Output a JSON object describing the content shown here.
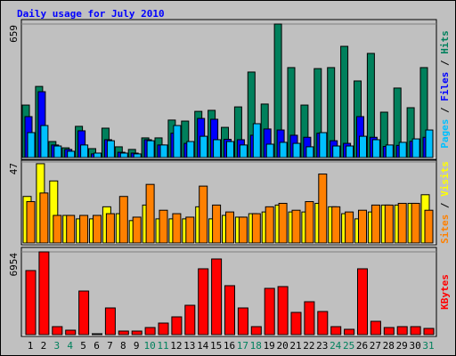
{
  "title": "Daily usage for July 2010",
  "chart_data": [
    {
      "type": "bar",
      "ylim": [
        0,
        659
      ],
      "yticks": [
        659
      ],
      "legend_separator": " / ",
      "series": [
        {
          "name": "Hits",
          "color": "#00805c",
          "values": [
            259,
            351,
            79,
            48,
            154,
            44,
            145,
            53,
            40,
            97,
            97,
            185,
            180,
            228,
            233,
            149,
            250,
            422,
            264,
            659,
            444,
            259,
            439,
            444,
            549,
            378,
            514,
            224,
            343,
            246,
            444
          ]
        },
        {
          "name": "Files",
          "color": "#0000ff",
          "values": [
            202,
            325,
            62,
            40,
            132,
            18,
            88,
            26,
            22,
            88,
            62,
            120,
            70,
            193,
            189,
            90,
            88,
            110,
            141,
            136,
            110,
            100,
            120,
            83,
            70,
            202,
            100,
            55,
            60,
            80,
            100
          ]
        },
        {
          "name": "Pages",
          "color": "#00c0ff",
          "values": [
            123,
            158,
            57,
            31,
            62,
            22,
            83,
            22,
            18,
            83,
            62,
            158,
            79,
            105,
            88,
            79,
            62,
            167,
            66,
            75,
            70,
            53,
            123,
            57,
            57,
            105,
            88,
            62,
            75,
            92,
            136
          ]
        }
      ]
    },
    {
      "type": "bar",
      "ylim": [
        0,
        47
      ],
      "yticks": [
        47
      ],
      "legend_separator": " / ",
      "series": [
        {
          "name": "Visits",
          "color": "#ffff00",
          "values": [
            27,
            46,
            36,
            16,
            14,
            14,
            21,
            17,
            13,
            22,
            14,
            14,
            14,
            21,
            14,
            16,
            15,
            17,
            18,
            22,
            18,
            18,
            23,
            21,
            17,
            14,
            18,
            22,
            22,
            23,
            28
          ]
        },
        {
          "name": "Sites",
          "color": "#ff8000",
          "values": [
            24,
            29,
            16,
            16,
            16,
            16,
            17,
            27,
            15,
            34,
            19,
            17,
            15,
            33,
            22,
            18,
            15,
            17,
            21,
            23,
            19,
            24,
            40,
            21,
            18,
            19,
            22,
            22,
            23,
            23,
            19
          ]
        }
      ]
    },
    {
      "type": "bar",
      "ylim": [
        0,
        6954
      ],
      "yticks": [
        6954
      ],
      "categories": [
        "1",
        "2",
        "3",
        "4",
        "5",
        "6",
        "7",
        "8",
        "9",
        "10",
        "11",
        "12",
        "13",
        "14",
        "15",
        "16",
        "17",
        "18",
        "19",
        "20",
        "21",
        "22",
        "23",
        "24",
        "25",
        "26",
        "27",
        "28",
        "29",
        "30",
        "31"
      ],
      "category_colors": [
        "#000000",
        "#000000",
        "#00805c",
        "#00805c",
        "#000000",
        "#000000",
        "#000000",
        "#000000",
        "#000000",
        "#00805c",
        "#00805c",
        "#000000",
        "#000000",
        "#000000",
        "#000000",
        "#000000",
        "#00805c",
        "#00805c",
        "#000000",
        "#000000",
        "#000000",
        "#000000",
        "#000000",
        "#00805c",
        "#00805c",
        "#000000",
        "#000000",
        "#000000",
        "#000000",
        "#000000",
        "#00805c"
      ],
      "series": [
        {
          "name": "KBytes",
          "color": "#ff0000",
          "values": [
            5385,
            6954,
            673,
            374,
            3664,
            75,
            2243,
            300,
            300,
            598,
            972,
            1495,
            2467,
            5534,
            6357,
            4114,
            2243,
            673,
            3889,
            4038,
            1869,
            2766,
            1944,
            673,
            449,
            5534,
            1121,
            598,
            673,
            673,
            523
          ]
        }
      ]
    }
  ]
}
